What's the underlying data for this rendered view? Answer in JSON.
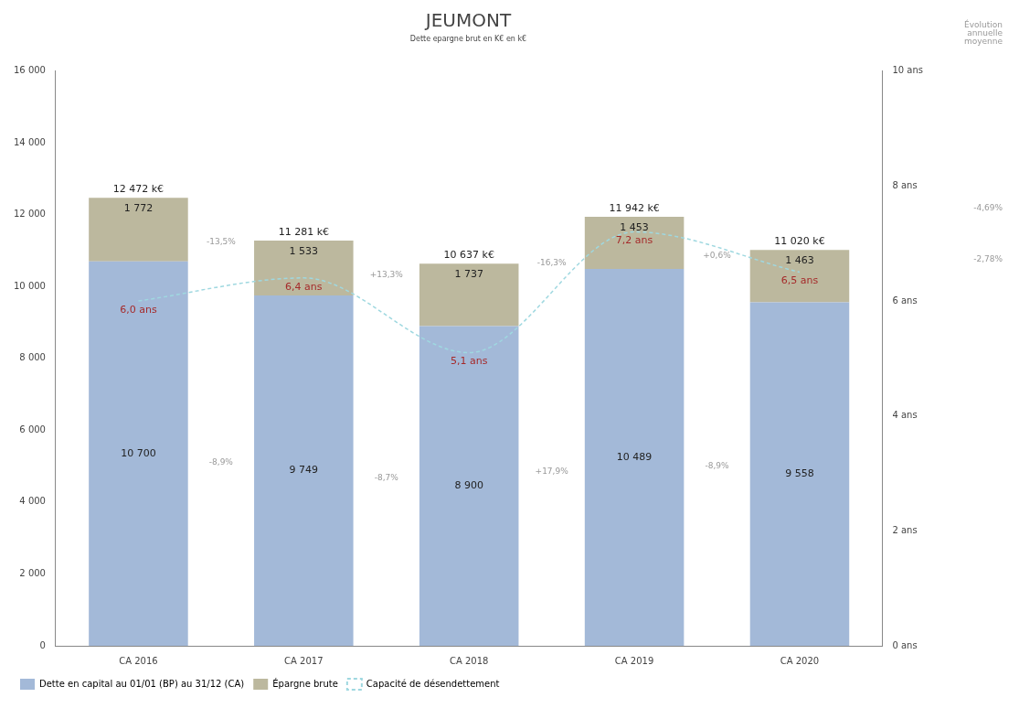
{
  "chart_data": {
    "type": "bar",
    "title": "JEUMONT",
    "subtitle": "Dette epargne brut en K€ en k€",
    "categories": [
      "CA 2016",
      "CA 2017",
      "CA 2018",
      "CA 2019",
      "CA 2020"
    ],
    "stacked": true,
    "series": [
      {
        "name": "Dette en capital au 01/01 (BP) au 31/12 (CA)",
        "color": "#a3b9d8",
        "values": [
          10700,
          9749,
          8900,
          10489,
          9558
        ],
        "value_labels": [
          "10 700",
          "9 749",
          "8 900",
          "10 489",
          "9 558"
        ]
      },
      {
        "name": "Épargne brute",
        "color": "#bcb89e",
        "values": [
          1772,
          1533,
          1737,
          1453,
          1463
        ],
        "value_labels": [
          "1 772",
          "1 533",
          "1 737",
          "1 453",
          "1 463"
        ]
      },
      {
        "name": "Capacité de désendettement",
        "type": "line",
        "axis": "y2",
        "color": "#9fd8e0",
        "line_style": "dashed",
        "marker": "none",
        "values": [
          6.0,
          6.4,
          5.1,
          7.2,
          6.5
        ],
        "value_labels": [
          "6,0 ans",
          "6,4 ans",
          "5,1 ans",
          "7,2 ans",
          "6,5 ans"
        ]
      }
    ],
    "totals": [
      "12 472 k€",
      "11 281 k€",
      "10 637 k€",
      "11 942 k€",
      "11 020 k€"
    ],
    "ylim": [
      0,
      16000
    ],
    "yticks": [
      {
        "value": 0,
        "label": "0"
      },
      {
        "value": 2000,
        "label": "2 000"
      },
      {
        "value": 4000,
        "label": "4 000"
      },
      {
        "value": 6000,
        "label": "6 000"
      },
      {
        "value": 8000,
        "label": "8 000"
      },
      {
        "value": 10000,
        "label": "10 000"
      },
      {
        "value": 12000,
        "label": "12 000"
      },
      {
        "value": 14000,
        "label": "14 000"
      },
      {
        "value": 16000,
        "label": "16 000"
      }
    ],
    "y2lim": [
      0,
      10
    ],
    "y2ticks": [
      {
        "value": 0,
        "label": "0 ans"
      },
      {
        "value": 2,
        "label": "2 ans"
      },
      {
        "value": 4,
        "label": "4 ans"
      },
      {
        "value": 6,
        "label": "6 ans"
      },
      {
        "value": 8,
        "label": "8 ans"
      },
      {
        "value": 10,
        "label": "10 ans"
      }
    ],
    "annotations": [
      "-13,5%",
      "+13,3%",
      "-16,3%",
      "+0,6%",
      "-8,9%",
      "-8,7%",
      "+17,9%",
      "-8,9%",
      "Évolution annuelle moyenne",
      "-4,69%",
      "-2,78%"
    ],
    "legend": "bottom",
    "grid": false
  }
}
